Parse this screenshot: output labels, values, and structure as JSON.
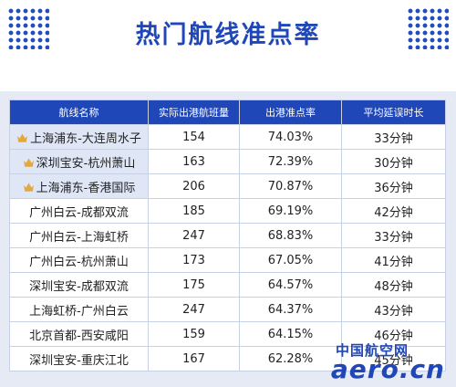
{
  "title": "热门航线准点率",
  "table": {
    "headers": [
      "航线名称",
      "实际出港航班量",
      "出港准点率",
      "平均延误时长"
    ],
    "rows": [
      {
        "crown": true,
        "route": "上海浦东-大连周水子",
        "flights": "154",
        "rate": "74.03%",
        "delay": "33分钟"
      },
      {
        "crown": true,
        "route": "深圳宝安-杭州萧山",
        "flights": "163",
        "rate": "72.39%",
        "delay": "30分钟"
      },
      {
        "crown": true,
        "route": "上海浦东-香港国际",
        "flights": "206",
        "rate": "70.87%",
        "delay": "36分钟"
      },
      {
        "crown": false,
        "route": "广州白云-成都双流",
        "flights": "185",
        "rate": "69.19%",
        "delay": "42分钟"
      },
      {
        "crown": false,
        "route": "广州白云-上海虹桥",
        "flights": "247",
        "rate": "68.83%",
        "delay": "33分钟"
      },
      {
        "crown": false,
        "route": "广州白云-杭州萧山",
        "flights": "173",
        "rate": "67.05%",
        "delay": "41分钟"
      },
      {
        "crown": false,
        "route": "深圳宝安-成都双流",
        "flights": "175",
        "rate": "64.57%",
        "delay": "48分钟"
      },
      {
        "crown": false,
        "route": "上海虹桥-广州白云",
        "flights": "247",
        "rate": "64.37%",
        "delay": "43分钟"
      },
      {
        "crown": false,
        "route": "北京首都-西安咸阳",
        "flights": "159",
        "rate": "64.15%",
        "delay": "46分钟"
      },
      {
        "crown": false,
        "route": "深圳宝安-重庆江北",
        "flights": "167",
        "rate": "62.28%",
        "delay": "45分钟"
      }
    ]
  },
  "watermark": {
    "cn": "中国航空网",
    "en": "aero.cn"
  },
  "colors": {
    "accent": "#1f47b8",
    "band": "#e6eaf5",
    "crown": "#e3a93a"
  }
}
